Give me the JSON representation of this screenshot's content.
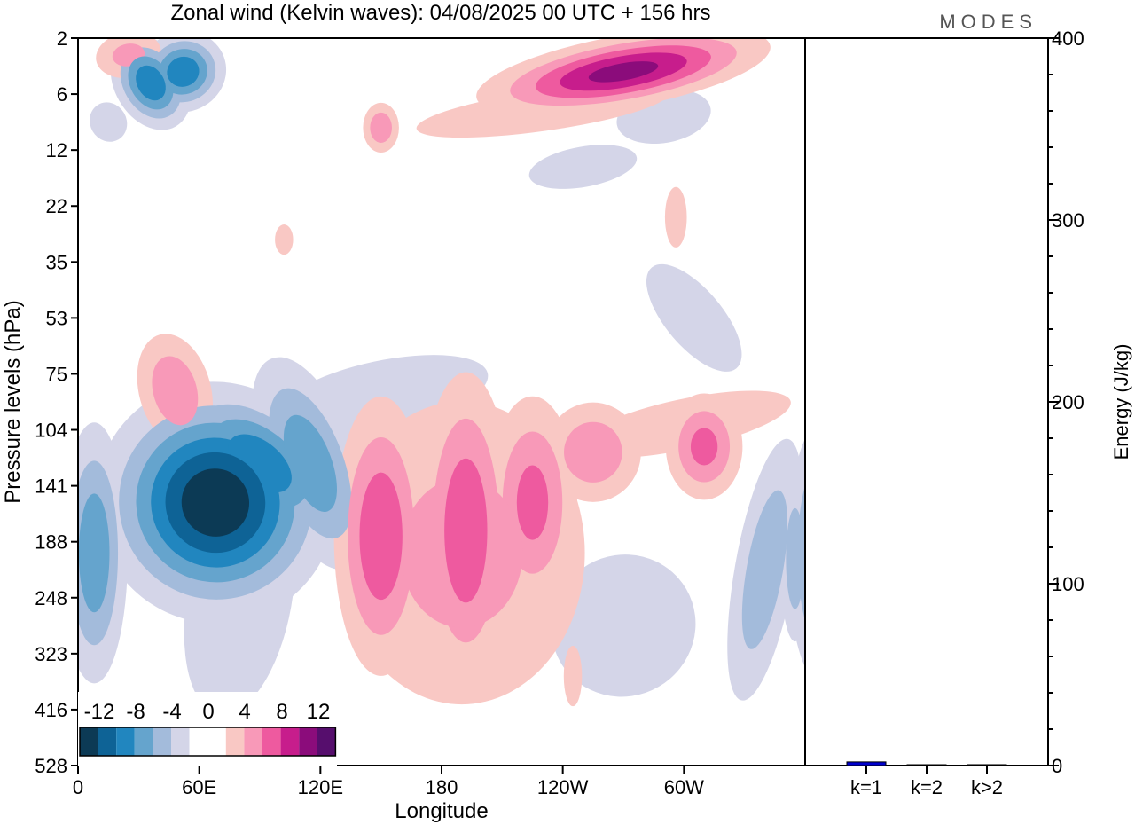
{
  "title": "Zonal wind (Kelvin waves):  04/08/2025  00 UTC  + 156 hrs",
  "brand": "MODES",
  "chart_data": [
    {
      "type": "heatmap",
      "title": "Zonal wind (Kelvin waves)",
      "xlabel": "Longitude",
      "ylabel": "Pressure levels (hPa)",
      "x_ticks": [
        {
          "lon": 0,
          "label": "0"
        },
        {
          "lon": 60,
          "label": "60E"
        },
        {
          "lon": 120,
          "label": "120E"
        },
        {
          "lon": 180,
          "label": "180"
        },
        {
          "lon": 240,
          "label": "120W"
        },
        {
          "lon": 300,
          "label": "60W"
        }
      ],
      "xlim": [
        0,
        360
      ],
      "y_levels": [
        "2",
        "6",
        "12",
        "22",
        "35",
        "53",
        "75",
        "104",
        "141",
        "188",
        "248",
        "323",
        "416",
        "528"
      ],
      "colorbar": {
        "tick_labels": [
          "-12",
          "-8",
          "-4",
          "0",
          "4",
          "8",
          "12"
        ],
        "levels": [
          -14,
          -12,
          -10,
          -8,
          -6,
          -4,
          -2,
          2,
          4,
          6,
          8,
          10,
          12,
          14
        ],
        "colors": [
          "#0c3a55",
          "#0e6396",
          "#2186bf",
          "#65a4cd",
          "#a3bbdb",
          "#d4d5e8",
          "#ffffff",
          "#f9c8c4",
          "#f899b8",
          "#ee5a9f",
          "#c71d8c",
          "#8b0c7b",
          "#560e6d"
        ]
      },
      "features": [
        {
          "lon": 68,
          "lev": 8.3,
          "slon": 30,
          "slev": 1.1,
          "angle": -35,
          "value": -14
        },
        {
          "lon": 90,
          "lev": 7.6,
          "slon": 16,
          "slev": 1.0,
          "angle": -50,
          "value": -10
        },
        {
          "lon": 115,
          "lev": 7.6,
          "slon": 14,
          "slev": 1.2,
          "angle": -20,
          "value": -8
        },
        {
          "lon": 8,
          "lev": 9.2,
          "slon": 10,
          "slev": 1.4,
          "angle": 0,
          "value": -8
        },
        {
          "lon": 80,
          "lev": 10.0,
          "slon": 22,
          "slev": 1.8,
          "angle": 10,
          "value": -4
        },
        {
          "lon": 150,
          "lev": 6.4,
          "slon": 60,
          "slev": 0.7,
          "angle": -12,
          "value": -3
        },
        {
          "lon": 270,
          "lev": 10.5,
          "slon": 40,
          "slev": 1.4,
          "angle": -30,
          "value": -3
        },
        {
          "lon": 340,
          "lev": 9.5,
          "slon": 10,
          "slev": 1.6,
          "angle": 10,
          "value": -6
        },
        {
          "lon": 355,
          "lev": 9.3,
          "slon": 5,
          "slev": 1.0,
          "angle": 0,
          "value": -6
        },
        {
          "lon": 305,
          "lev": 5.0,
          "slon": 12,
          "slev": 1.0,
          "angle": -40,
          "value": -4
        },
        {
          "lon": 52,
          "lev": 0.6,
          "slon": 12,
          "slev": 0.4,
          "angle": -20,
          "value": -10
        },
        {
          "lon": 36,
          "lev": 0.8,
          "slon": 10,
          "slev": 0.5,
          "angle": -30,
          "value": -10
        },
        {
          "lon": 15,
          "lev": 1.5,
          "slon": 10,
          "slev": 0.4,
          "angle": -30,
          "value": -3
        },
        {
          "lon": 290,
          "lev": 1.4,
          "slon": 20,
          "slev": 0.4,
          "angle": -10,
          "value": -4
        },
        {
          "lon": 250,
          "lev": 2.3,
          "slon": 30,
          "slev": 0.4,
          "angle": -10,
          "value": -3
        },
        {
          "lon": 150,
          "lev": 8.9,
          "slon": 14,
          "slev": 1.5,
          "angle": 0,
          "value": 8
        },
        {
          "lon": 192,
          "lev": 8.8,
          "slon": 14,
          "slev": 1.7,
          "angle": 0,
          "value": 8
        },
        {
          "lon": 225,
          "lev": 8.3,
          "slon": 14,
          "slev": 1.2,
          "angle": 0,
          "value": 7
        },
        {
          "lon": 190,
          "lev": 9.2,
          "slon": 45,
          "slev": 2.0,
          "angle": 0,
          "value": 5
        },
        {
          "lon": 245,
          "lev": 11.4,
          "slon": 5,
          "slev": 0.6,
          "angle": 0,
          "value": 3
        },
        {
          "lon": 48,
          "lev": 6.3,
          "slon": 12,
          "slev": 0.7,
          "angle": -15,
          "value": 6
        },
        {
          "lon": 255,
          "lev": 7.4,
          "slon": 16,
          "slev": 0.6,
          "angle": 0,
          "value": 6
        },
        {
          "lon": 310,
          "lev": 7.3,
          "slon": 12,
          "slev": 0.6,
          "angle": 0,
          "value": 7
        },
        {
          "lon": 300,
          "lev": 6.9,
          "slon": 60,
          "slev": 0.5,
          "angle": -12,
          "value": 3
        },
        {
          "lon": 270,
          "lev": 0.6,
          "slon": 40,
          "slev": 0.35,
          "angle": -10,
          "value": 11
        },
        {
          "lon": 230,
          "lev": 1.3,
          "slon": 70,
          "slev": 0.4,
          "angle": -8,
          "value": 3
        },
        {
          "lon": 25,
          "lev": 0.3,
          "slon": 12,
          "slev": 0.3,
          "angle": -10,
          "value": 5
        },
        {
          "lon": 150,
          "lev": 1.6,
          "slon": 6,
          "slev": 0.3,
          "angle": 0,
          "value": 6
        },
        {
          "lon": 102,
          "lev": 3.6,
          "slon": 5,
          "slev": 0.3,
          "angle": 0,
          "value": 3
        },
        {
          "lon": 296,
          "lev": 3.2,
          "slon": 6,
          "slev": 0.6,
          "angle": 0,
          "value": 3
        }
      ]
    },
    {
      "type": "bar",
      "ylabel": "Energy (J/kg)",
      "categories": [
        "k=1",
        "k=2",
        "k>2"
      ],
      "values": [
        2,
        0.3,
        0.5
      ],
      "ylim": [
        0,
        400
      ],
      "y_ticks": [
        "0",
        "100",
        "200",
        "300",
        "400"
      ],
      "bar_color": "#0000cc"
    }
  ]
}
